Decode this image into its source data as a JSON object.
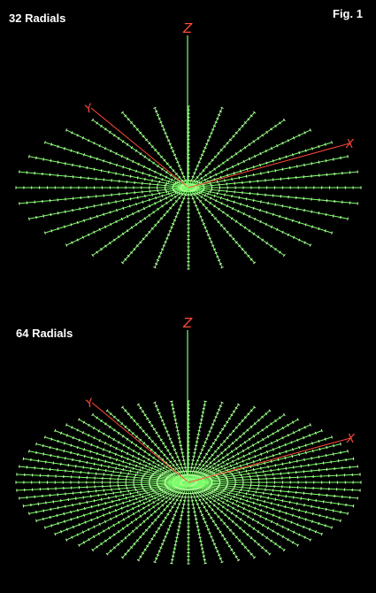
{
  "figure_label": "Fig. 1",
  "panels": [
    {
      "title": "32 Radials",
      "radial_count": 32,
      "axis_labels": {
        "z": "Z",
        "y": "Y",
        "x": "X"
      }
    },
    {
      "title": "64 Radials",
      "radial_count": 64,
      "axis_labels": {
        "z": "Z",
        "y": "Y",
        "x": "X"
      }
    }
  ],
  "colors": {
    "background": "#000000",
    "radial": "#7cff6a",
    "segment_marker": "#c8ffb0",
    "axis": "#ff4a3a",
    "vertical_wire": "#7cff6a",
    "text": "#ffffff"
  }
}
